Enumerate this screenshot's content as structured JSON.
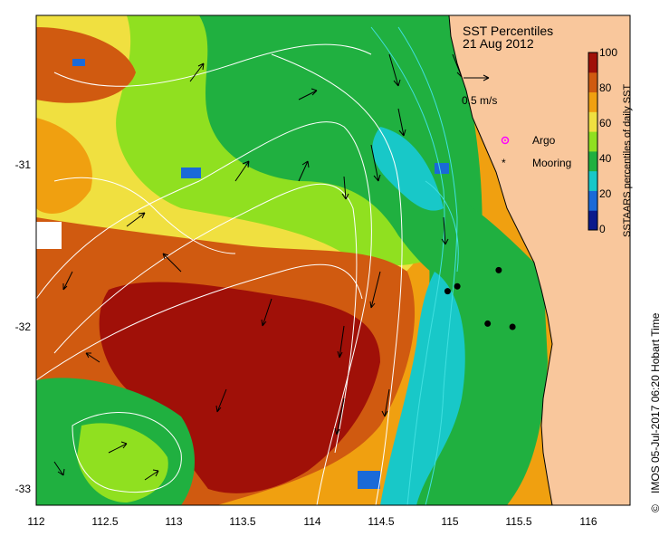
{
  "title": {
    "line1": "SST Percentiles",
    "line2": "21 Aug 2012"
  },
  "velocity_scale": {
    "label": "0.5 m/s"
  },
  "legend": {
    "argo": "Argo",
    "mooring": "Mooring"
  },
  "colorbar": {
    "label": "SSTAARS percentiles of daily SST",
    "ticks": [
      "100",
      "80",
      "60",
      "40",
      "20",
      "0"
    ],
    "colors": [
      "#0a1a8c",
      "#1a6ad8",
      "#18c8c8",
      "#20b040",
      "#90e020",
      "#f0e040",
      "#f0a010",
      "#d05a10",
      "#a01008"
    ]
  },
  "axes": {
    "x_ticks": [
      "112",
      "112.5",
      "113",
      "113.5",
      "114",
      "114.5",
      "115",
      "115.5",
      "116"
    ],
    "y_ticks": [
      "-31",
      "-32",
      "-33"
    ]
  },
  "credit": "IMOS 05-Jul-2017 06:20 Hobart Time",
  "copyright_symbol": "©",
  "colors": {
    "land": "#f9c79c",
    "argo": "#ff00ff",
    "mooring": "#000000",
    "contours_white": "#ffffff",
    "contours_cyan": "#40e0e0"
  },
  "moorings": [
    {
      "lon": 115.35,
      "lat": -31.65
    },
    {
      "lon": 115.05,
      "lat": -31.75
    },
    {
      "lon": 114.98,
      "lat": -31.78
    },
    {
      "lon": 115.27,
      "lat": -31.98
    },
    {
      "lon": 115.45,
      "lat": -32.0
    }
  ]
}
